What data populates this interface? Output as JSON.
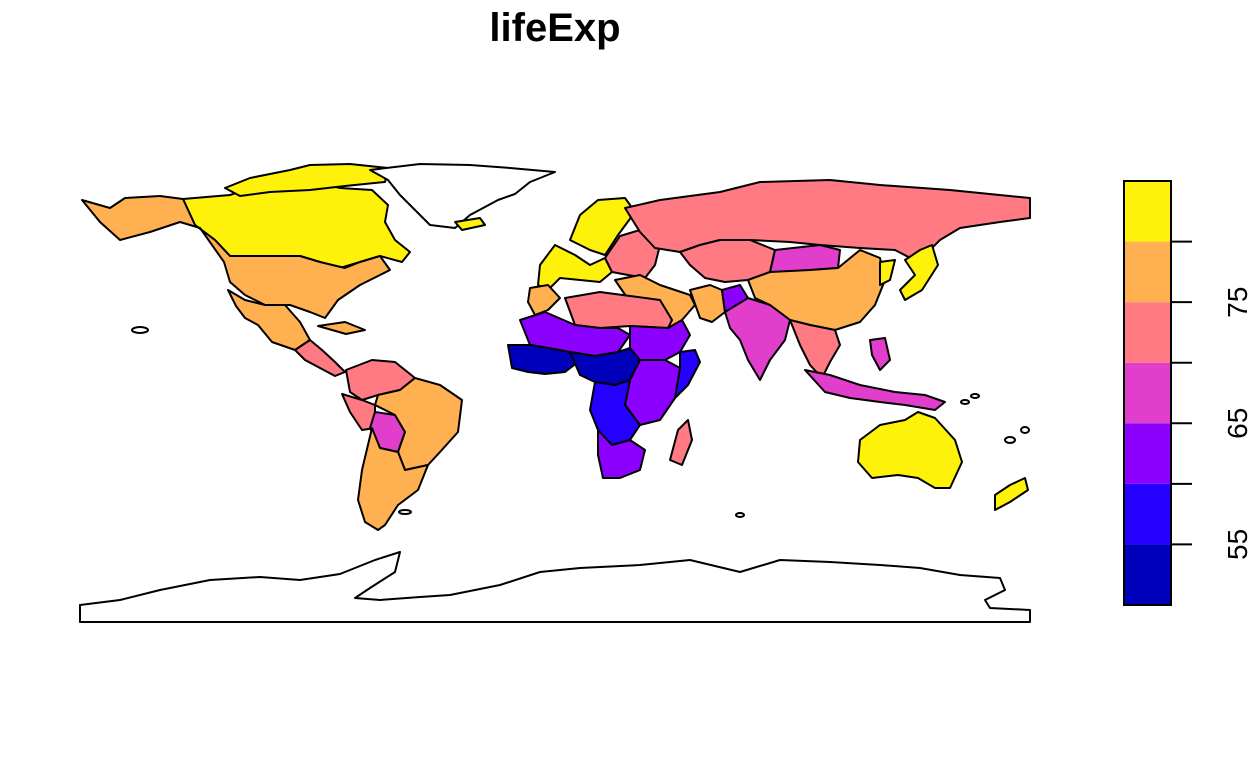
{
  "title": "lifeExp",
  "legend": {
    "placement": "right",
    "tick_labels": [
      "55",
      "65",
      "75"
    ],
    "tick_values": [
      55,
      60,
      65,
      70,
      75,
      80
    ],
    "range": [
      50,
      85
    ],
    "breaks": [
      50,
      55,
      60,
      65,
      70,
      75,
      80,
      85
    ],
    "colors": [
      "#0000BA",
      "#2500FF",
      "#8B00FF",
      "#E23ECC",
      "#FF7A82",
      "#FFB050",
      "#FFF20A"
    ]
  },
  "chart_data": {
    "type": "choropleth",
    "variable": "lifeExp",
    "title": "lifeExp",
    "classes": [
      {
        "range": [
          50,
          55
        ],
        "color": "#0000BA"
      },
      {
        "range": [
          55,
          60
        ],
        "color": "#2500FF"
      },
      {
        "range": [
          60,
          65
        ],
        "color": "#8B00FF"
      },
      {
        "range": [
          65,
          70
        ],
        "color": "#E23ECC"
      },
      {
        "range": [
          70,
          75
        ],
        "color": "#FF7A82"
      },
      {
        "range": [
          75,
          80
        ],
        "color": "#FFB050"
      },
      {
        "range": [
          80,
          85
        ],
        "color": "#FFF20A"
      }
    ],
    "regions": [
      {
        "region": "Canada",
        "class": 6
      },
      {
        "region": "Arctic islands",
        "class": 6
      },
      {
        "region": "Alaska / USA",
        "class": 5
      },
      {
        "region": "Mexico",
        "class": 5
      },
      {
        "region": "Central America",
        "class": 4
      },
      {
        "region": "Cuba",
        "class": 5
      },
      {
        "region": "Colombia / Venezuela",
        "class": 4
      },
      {
        "region": "Peru / Ecuador",
        "class": 4
      },
      {
        "region": "Bolivia",
        "class": 3
      },
      {
        "region": "Brazil",
        "class": 5
      },
      {
        "region": "Argentina / Chile",
        "class": 5
      },
      {
        "region": "Greenland",
        "class": null
      },
      {
        "region": "Iceland",
        "class": 6
      },
      {
        "region": "Scandinavia",
        "class": 6
      },
      {
        "region": "Western Europe",
        "class": 6
      },
      {
        "region": "Eastern Europe",
        "class": 4
      },
      {
        "region": "Russia",
        "class": 4
      },
      {
        "region": "Kazakhstan",
        "class": 4
      },
      {
        "region": "Mongolia",
        "class": 3
      },
      {
        "region": "China",
        "class": 5
      },
      {
        "region": "Japan",
        "class": 6
      },
      {
        "region": "Korea",
        "class": 6
      },
      {
        "region": "Turkey / Middle East",
        "class": 5
      },
      {
        "region": "Iran",
        "class": 5
      },
      {
        "region": "Afghanistan",
        "class": 2
      },
      {
        "region": "India / Pakistan",
        "class": 3
      },
      {
        "region": "Southeast Asia",
        "class": 4
      },
      {
        "region": "Indonesia",
        "class": 3
      },
      {
        "region": "Philippines",
        "class": 3
      },
      {
        "region": "North Africa (Algeria/Libya/Egypt)",
        "class": 4
      },
      {
        "region": "Morocco",
        "class": 5
      },
      {
        "region": "Sahel (Mali/Niger/Chad)",
        "class": 2
      },
      {
        "region": "West Africa coast",
        "class": 0
      },
      {
        "region": "Central Africa",
        "class": 0
      },
      {
        "region": "Sudan / Ethiopia",
        "class": 2
      },
      {
        "region": "Somalia",
        "class": 1
      },
      {
        "region": "East Africa",
        "class": 2
      },
      {
        "region": "DR Congo / Angola",
        "class": 1
      },
      {
        "region": "Southern Africa",
        "class": 2
      },
      {
        "region": "Madagascar",
        "class": 4
      },
      {
        "region": "Australia",
        "class": 6
      },
      {
        "region": "New Zealand",
        "class": 6
      },
      {
        "region": "Antarctica",
        "class": null
      }
    ]
  }
}
